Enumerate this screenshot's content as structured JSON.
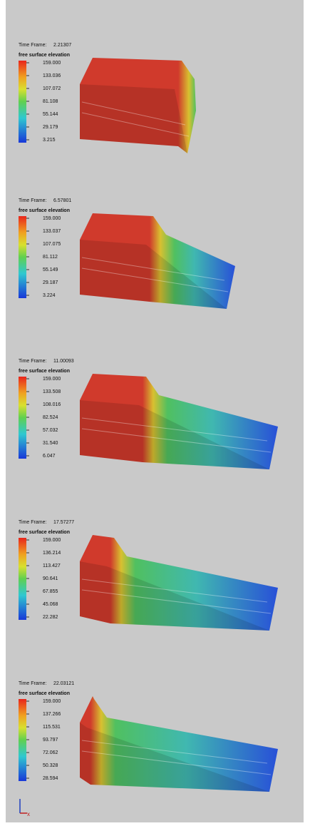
{
  "panels": [
    {
      "time_label": "Time Frame:",
      "time": "2.21307",
      "legend_title": "free surface elevation",
      "ticks": [
        "159.000",
        "133.036",
        "107.072",
        "81.108",
        "55.144",
        "29.179",
        "3.215"
      ]
    },
    {
      "time_label": "Time Frame:",
      "time": "6.57801",
      "legend_title": "free surface elevation",
      "ticks": [
        "159.000",
        "133.037",
        "107.075",
        "81.112",
        "55.149",
        "29.187",
        "3.224"
      ]
    },
    {
      "time_label": "Time Frame:",
      "time": "11.00093",
      "legend_title": "free surface elevation",
      "ticks": [
        "159.000",
        "133.508",
        "108.016",
        "82.524",
        "57.032",
        "31.540",
        "6.047"
      ]
    },
    {
      "time_label": "Time Frame:",
      "time": "17.57277",
      "legend_title": "free surface elevation",
      "ticks": [
        "159.000",
        "136.214",
        "113.427",
        "90.641",
        "67.855",
        "45.068",
        "22.282"
      ]
    },
    {
      "time_label": "Time Frame:",
      "time": "22.03121",
      "legend_title": "free surface elevation",
      "ticks": [
        "159.000",
        "137.266",
        "115.531",
        "93.797",
        "72.062",
        "50.328",
        "28.594"
      ]
    }
  ],
  "axis_label": "x"
}
